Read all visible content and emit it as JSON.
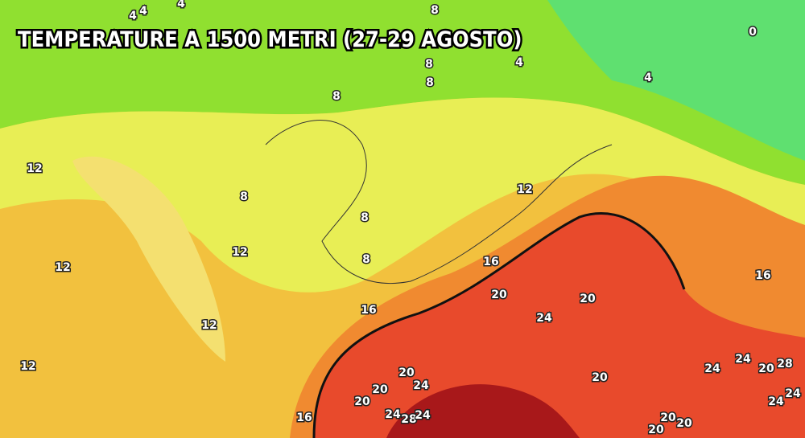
{
  "title": "TEMPERATURE  A 1500 METRI (27-29 AGOSTO)",
  "contour_labels": [
    4,
    4,
    4,
    8,
    0,
    4,
    8,
    8,
    4,
    8,
    12,
    8,
    12,
    8,
    12,
    8,
    16,
    12,
    16,
    20,
    20,
    16,
    24,
    12,
    12,
    24,
    28,
    24,
    20,
    20,
    20,
    24,
    20,
    20,
    24,
    24,
    16,
    24,
    28,
    24,
    20,
    20,
    20
  ]
}
